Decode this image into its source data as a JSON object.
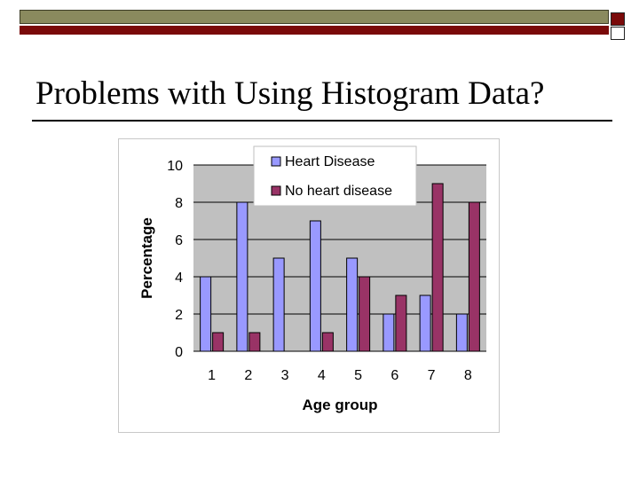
{
  "slide": {
    "title": "Problems with Using Histogram Data?",
    "colors": {
      "olive": "#8a8a5e",
      "maroon": "#7a0a0a"
    }
  },
  "chart_data": {
    "type": "bar",
    "title": "",
    "xlabel": "Age group",
    "ylabel": "Percentage",
    "categories": [
      "1",
      "2",
      "3",
      "4",
      "5",
      "6",
      "7",
      "8"
    ],
    "series": [
      {
        "name": "Heart Disease",
        "color": "#9999ff",
        "values": [
          4,
          8,
          5,
          7,
          5,
          2,
          3,
          2
        ]
      },
      {
        "name": "No heart disease",
        "color": "#993366",
        "values": [
          1,
          1,
          0,
          1,
          4,
          3,
          9,
          8
        ]
      }
    ],
    "ylim": [
      0,
      10
    ],
    "yticks": [
      0,
      2,
      4,
      6,
      8,
      10
    ],
    "grid": true,
    "legend": "top-right",
    "plot_background": "#c0c0c0"
  }
}
